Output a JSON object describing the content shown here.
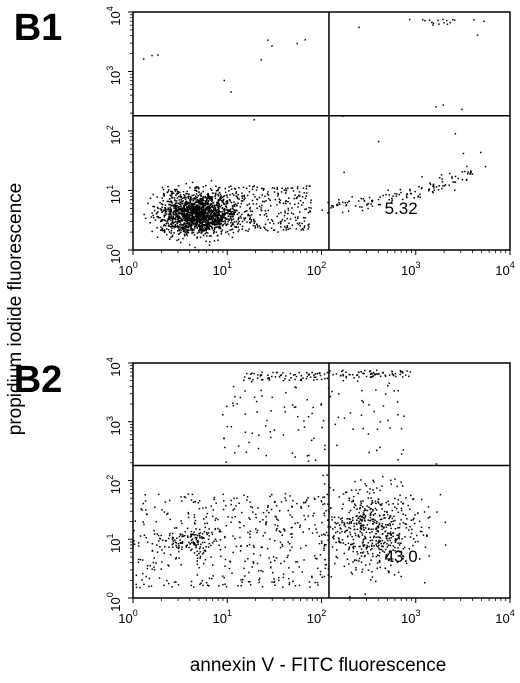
{
  "axis_labels": {
    "x": "annexin V - FITC fluorescence",
    "y": "propidium iodide fluorescence"
  },
  "tick_base": "10",
  "chart_data": [
    {
      "type": "scatter",
      "panel": "B1",
      "xscale": "log",
      "yscale": "log",
      "xlim": [
        1,
        10000
      ],
      "ylim": [
        1,
        10000
      ],
      "xticks": [
        1,
        10,
        100,
        1000,
        10000
      ],
      "yticks": [
        1,
        10,
        100,
        1000,
        10000
      ],
      "tick_exponents": [
        "0",
        "1",
        "2",
        "3",
        "4"
      ],
      "gate": {
        "x": 120,
        "y": 180
      },
      "quadrant_value": "5.32",
      "quadrant_value_position": "lower-right",
      "clusters": [
        {
          "region": "viable",
          "n": 1500,
          "x_center": 5,
          "y_center": 4,
          "x_spread": 0.2,
          "y_spread": 0.17
        },
        {
          "region": "viable-tail",
          "n": 450,
          "x_range": [
            2,
            80
          ],
          "y_range": [
            2,
            12
          ]
        },
        {
          "region": "early-apoptotic-tail",
          "n": 130,
          "x_range": [
            100,
            4000
          ],
          "y_range": [
            5,
            60
          ]
        },
        {
          "region": "necrotic-upper",
          "n": 18,
          "x_range": [
            700,
            6000
          ],
          "y_range": [
            6000,
            7500
          ]
        },
        {
          "region": "sparse",
          "n": 25,
          "x_range": [
            1,
            6000
          ],
          "y_range": [
            10,
            8000
          ]
        }
      ]
    },
    {
      "type": "scatter",
      "panel": "B2",
      "xscale": "log",
      "yscale": "log",
      "xlim": [
        1,
        10000
      ],
      "ylim": [
        1,
        10000
      ],
      "xticks": [
        1,
        10,
        100,
        1000,
        10000
      ],
      "yticks": [
        1,
        10,
        100,
        1000,
        10000
      ],
      "tick_exponents": [
        "0",
        "1",
        "2",
        "3",
        "4"
      ],
      "gate": {
        "x": 120,
        "y": 180
      },
      "quadrant_value": "43.0",
      "quadrant_value_position": "lower-right",
      "clusters": [
        {
          "region": "viable",
          "n": 120,
          "x_center": 4,
          "y_center": 9,
          "x_spread": 0.15,
          "y_spread": 0.12
        },
        {
          "region": "lower-left-diffuse",
          "n": 420,
          "x_range": [
            1,
            120
          ],
          "y_range": [
            1.5,
            60
          ]
        },
        {
          "region": "early-apoptotic",
          "n": 600,
          "x_center": 350,
          "y_center": 15,
          "x_spread": 0.28,
          "y_spread": 0.35
        },
        {
          "region": "late-apoptotic-band",
          "n": 70,
          "x_range": [
            120,
            900
          ],
          "y_range": [
            5500,
            7500
          ]
        },
        {
          "region": "upper-left-band",
          "n": 70,
          "x_range": [
            15,
            120
          ],
          "y_range": [
            5000,
            7000
          ]
        },
        {
          "region": "upper-scatter",
          "n": 110,
          "x_range": [
            8,
            900
          ],
          "y_range": [
            200,
            5000
          ]
        }
      ]
    }
  ]
}
